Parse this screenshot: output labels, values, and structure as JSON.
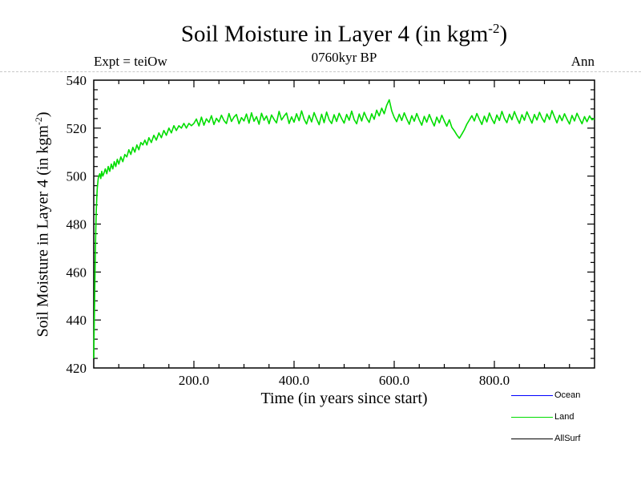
{
  "chart_data": {
    "type": "line",
    "title": "Soil Moisture in Layer 4 (in kgm-2)",
    "title_parts": {
      "pre": "Soil Moisture in Layer 4 (in kgm",
      "sup": "-2",
      "post": ")"
    },
    "subtitle": "0760kyr BP",
    "annotation_left": "Expt = teiOw",
    "annotation_right": "Ann",
    "xlabel": "Time (in years since start)",
    "ylabel": "Soil Moisture in Layer 4 (in kgm-2)",
    "ylabel_parts": {
      "pre": "Soil Moisture in Layer 4 (in kgm",
      "sup": "-2",
      "post": ")"
    },
    "xlim": [
      0,
      1000
    ],
    "ylim": [
      420,
      540
    ],
    "grid": false,
    "xticks": {
      "major": [
        200,
        400,
        600,
        800
      ],
      "labels": [
        "200.0",
        "400.0",
        "600.0",
        "800.0"
      ],
      "minor_step": 50
    },
    "yticks": {
      "major": [
        420,
        440,
        460,
        480,
        500,
        520,
        540
      ],
      "labels": [
        "420",
        "440",
        "460",
        "480",
        "500",
        "520",
        "540"
      ],
      "minor_step": 4
    },
    "legend": {
      "position": "bottom-right",
      "entries": [
        {
          "label": "Ocean",
          "color": "#0000ff"
        },
        {
          "label": "Land",
          "color": "#00dd00"
        },
        {
          "label": "AllSurf",
          "color": "#000000"
        }
      ]
    },
    "series": [
      {
        "name": "Ocean",
        "color": "#0000ff",
        "points": []
      },
      {
        "name": "Land",
        "color": "#00dd00",
        "points": [
          [
            0,
            424
          ],
          [
            1,
            438
          ],
          [
            2,
            453
          ],
          [
            3,
            466
          ],
          [
            4,
            477
          ],
          [
            5,
            485
          ],
          [
            6,
            491
          ],
          [
            7,
            495
          ],
          [
            8,
            497
          ],
          [
            9,
            499
          ],
          [
            10,
            500
          ],
          [
            12,
            501
          ],
          [
            14,
            499
          ],
          [
            16,
            502
          ],
          [
            18,
            500
          ],
          [
            20,
            501
          ],
          [
            23,
            503
          ],
          [
            26,
            501
          ],
          [
            29,
            504
          ],
          [
            32,
            502
          ],
          [
            35,
            505
          ],
          [
            38,
            503
          ],
          [
            41,
            506
          ],
          [
            44,
            504
          ],
          [
            47,
            507
          ],
          [
            50,
            505
          ],
          [
            54,
            508
          ],
          [
            58,
            506
          ],
          [
            62,
            509
          ],
          [
            66,
            508
          ],
          [
            70,
            511
          ],
          [
            74,
            509
          ],
          [
            78,
            512
          ],
          [
            82,
            510
          ],
          [
            86,
            513
          ],
          [
            90,
            511
          ],
          [
            94,
            514
          ],
          [
            98,
            513
          ],
          [
            102,
            515
          ],
          [
            106,
            513
          ],
          [
            110,
            516
          ],
          [
            115,
            514
          ],
          [
            120,
            517
          ],
          [
            125,
            515
          ],
          [
            130,
            518
          ],
          [
            135,
            516
          ],
          [
            140,
            519
          ],
          [
            145,
            517
          ],
          [
            150,
            520
          ],
          [
            155,
            518
          ],
          [
            160,
            521
          ],
          [
            165,
            519
          ],
          [
            170,
            521
          ],
          [
            175,
            520
          ],
          [
            180,
            522
          ],
          [
            185,
            520
          ],
          [
            190,
            522
          ],
          [
            195,
            521
          ],
          [
            200,
            522
          ],
          [
            205,
            523.8
          ],
          [
            210,
            520.9
          ],
          [
            215,
            524.6
          ],
          [
            220,
            521.2
          ],
          [
            225,
            523.9
          ],
          [
            230,
            522.4
          ],
          [
            235,
            525.2
          ],
          [
            240,
            521.5
          ],
          [
            245,
            524.1
          ],
          [
            250,
            522.6
          ],
          [
            255,
            525.4
          ],
          [
            260,
            523.2
          ],
          [
            265,
            521.9
          ],
          [
            270,
            526.1
          ],
          [
            275,
            522.8
          ],
          [
            280,
            524.6
          ],
          [
            285,
            525.7
          ],
          [
            290,
            521.8
          ],
          [
            295,
            524.4
          ],
          [
            300,
            523
          ],
          [
            305,
            525.9
          ],
          [
            310,
            522.1
          ],
          [
            315,
            526.4
          ],
          [
            320,
            522.9
          ],
          [
            325,
            524.8
          ],
          [
            330,
            521.6
          ],
          [
            335,
            526.2
          ],
          [
            340,
            523.3
          ],
          [
            345,
            525.1
          ],
          [
            350,
            521.8
          ],
          [
            355,
            525.5
          ],
          [
            360,
            523.7
          ],
          [
            365,
            522.2
          ],
          [
            370,
            527
          ],
          [
            375,
            523.4
          ],
          [
            380,
            525
          ],
          [
            385,
            526.3
          ],
          [
            390,
            521.9
          ],
          [
            395,
            524.7
          ],
          [
            400,
            522.5
          ],
          [
            405,
            526
          ],
          [
            410,
            523.1
          ],
          [
            415,
            527.2
          ],
          [
            420,
            523.8
          ],
          [
            425,
            521.7
          ],
          [
            430,
            525.3
          ],
          [
            435,
            522.6
          ],
          [
            440,
            526.5
          ],
          [
            445,
            523.9
          ],
          [
            450,
            521.4
          ],
          [
            455,
            525.8
          ],
          [
            460,
            522.3
          ],
          [
            465,
            526.7
          ],
          [
            470,
            523.5
          ],
          [
            475,
            521.9
          ],
          [
            480,
            525.6
          ],
          [
            485,
            522.8
          ],
          [
            490,
            526.2
          ],
          [
            495,
            524
          ],
          [
            500,
            522.1
          ],
          [
            505,
            525.7
          ],
          [
            510,
            523.3
          ],
          [
            515,
            527.1
          ],
          [
            520,
            523.6
          ],
          [
            525,
            521.8
          ],
          [
            530,
            525.9
          ],
          [
            535,
            523
          ],
          [
            540,
            526.6
          ],
          [
            545,
            524.2
          ],
          [
            550,
            522.4
          ],
          [
            555,
            526
          ],
          [
            560,
            523.7
          ],
          [
            565,
            527.5
          ],
          [
            570,
            525.1
          ],
          [
            575,
            528.3
          ],
          [
            580,
            526
          ],
          [
            585,
            529.5
          ],
          [
            590,
            531.8
          ],
          [
            595,
            527.2
          ],
          [
            600,
            524.5
          ],
          [
            605,
            522.7
          ],
          [
            610,
            525.8
          ],
          [
            615,
            523.2
          ],
          [
            620,
            526.4
          ],
          [
            625,
            523.9
          ],
          [
            630,
            521.6
          ],
          [
            635,
            525.2
          ],
          [
            640,
            522.9
          ],
          [
            645,
            526.1
          ],
          [
            650,
            523.4
          ],
          [
            655,
            521.2
          ],
          [
            660,
            524.9
          ],
          [
            665,
            522.5
          ],
          [
            670,
            525.7
          ],
          [
            675,
            523.1
          ],
          [
            680,
            520.9
          ],
          [
            685,
            524.6
          ],
          [
            690,
            522.2
          ],
          [
            695,
            525.4
          ],
          [
            700,
            523
          ],
          [
            705,
            520.8
          ],
          [
            710,
            523.5
          ],
          [
            715,
            520.3
          ],
          [
            720,
            518.9
          ],
          [
            725,
            517.2
          ],
          [
            730,
            515.8
          ],
          [
            735,
            517.5
          ],
          [
            740,
            519.3
          ],
          [
            745,
            521.6
          ],
          [
            750,
            523.4
          ],
          [
            755,
            525.2
          ],
          [
            760,
            523
          ],
          [
            765,
            526.1
          ],
          [
            770,
            523.7
          ],
          [
            775,
            521.5
          ],
          [
            780,
            525
          ],
          [
            785,
            522.6
          ],
          [
            790,
            526.3
          ],
          [
            795,
            523.8
          ],
          [
            800,
            521.9
          ],
          [
            805,
            525.5
          ],
          [
            810,
            523.2
          ],
          [
            815,
            527
          ],
          [
            820,
            524.1
          ],
          [
            825,
            522.3
          ],
          [
            830,
            525.8
          ],
          [
            835,
            523.5
          ],
          [
            840,
            526.9
          ],
          [
            845,
            524.3
          ],
          [
            850,
            522
          ],
          [
            855,
            525.6
          ],
          [
            860,
            523.3
          ],
          [
            865,
            526.8
          ],
          [
            870,
            524.4
          ],
          [
            875,
            522.1
          ],
          [
            880,
            525.7
          ],
          [
            885,
            523.4
          ],
          [
            890,
            526.6
          ],
          [
            895,
            524.2
          ],
          [
            900,
            522.5
          ],
          [
            905,
            525.9
          ],
          [
            910,
            523.6
          ],
          [
            915,
            527.3
          ],
          [
            920,
            524.7
          ],
          [
            925,
            522.2
          ],
          [
            930,
            525.4
          ],
          [
            935,
            523.1
          ],
          [
            940,
            526
          ],
          [
            945,
            523.8
          ],
          [
            950,
            521.7
          ],
          [
            955,
            525.3
          ],
          [
            960,
            523
          ],
          [
            965,
            526.2
          ],
          [
            970,
            523.9
          ],
          [
            975,
            521.8
          ],
          [
            980,
            524.8
          ],
          [
            985,
            522.7
          ],
          [
            990,
            525.1
          ],
          [
            995,
            523.5
          ],
          [
            1000,
            524
          ]
        ]
      },
      {
        "name": "AllSurf",
        "color": "#000000",
        "points": []
      }
    ]
  }
}
